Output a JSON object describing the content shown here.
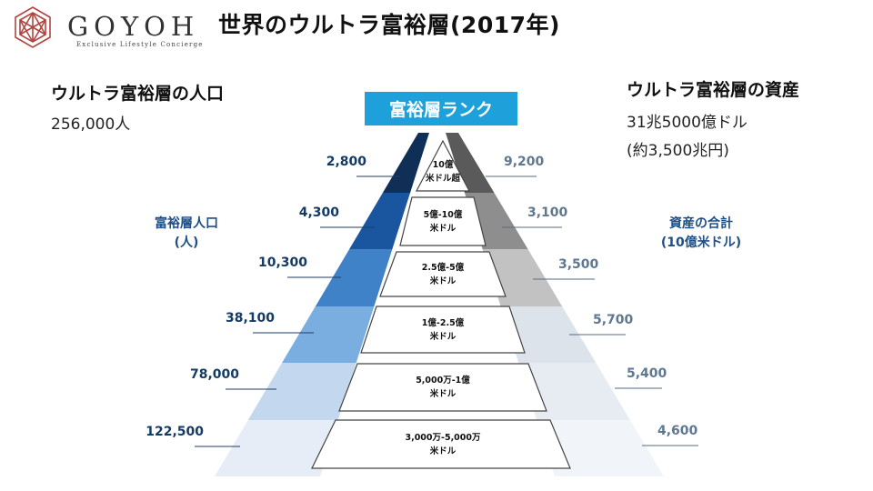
{
  "brand": {
    "name": "GOYOH",
    "tagline": "Exclusive Lifestyle Concierge",
    "icon": "asanoha-hexagon-logo-icon",
    "color": "#b0443f"
  },
  "title": "世界のウルトラ富裕層(2017年)",
  "population": {
    "heading": "ウルトラ富裕層の人口",
    "value": "256,000人"
  },
  "assets": {
    "heading": "ウルトラ富裕層の資産",
    "value": "31兆5000億ドル",
    "note": "(約3,500兆円)"
  },
  "rank_banner": "富裕層ランク",
  "left_axis_label": "富裕層人口\n(人)",
  "right_axis_label": "資産の合計\n(10億米ドル)",
  "tiers": [
    {
      "label_line1": "10億",
      "label_line2": "米ドル超",
      "population": "2,800",
      "assets": "9,200"
    },
    {
      "label_line1": "5億-10億",
      "label_line2": "米ドル",
      "population": "4,300",
      "assets": "3,100"
    },
    {
      "label_line1": "2.5億-5億",
      "label_line2": "米ドル",
      "population": "10,300",
      "assets": "3,500"
    },
    {
      "label_line1": "1億-2.5億",
      "label_line2": "米ドル",
      "population": "38,100",
      "assets": "5,700"
    },
    {
      "label_line1": "5,000万-1億",
      "label_line2": "米ドル",
      "population": "78,000",
      "assets": "5,400"
    },
    {
      "label_line1": "3,000万-5,000万",
      "label_line2": "米ドル",
      "population": "122,500",
      "assets": "4,600"
    }
  ],
  "colors": {
    "banner": "#1ea1da",
    "left_band": [
      "#0f2f57",
      "#1a56a0",
      "#3f82c8",
      "#7aaee0",
      "#c3d8ef",
      "#e6edf6"
    ],
    "right_band": [
      "#5a5a5a",
      "#8e8e8e",
      "#c2c2c2",
      "#dde3ea",
      "#e7ecf2",
      "#f1f4f8"
    ]
  }
}
